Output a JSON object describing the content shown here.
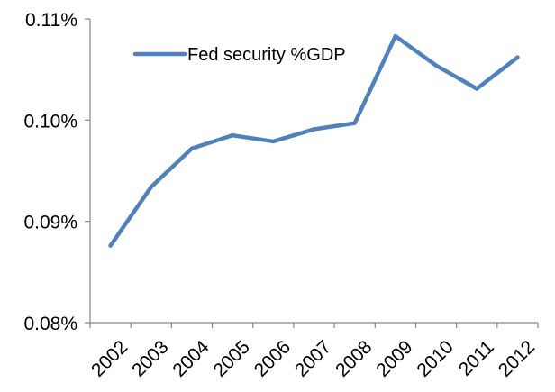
{
  "chart_data": {
    "type": "line",
    "categories": [
      "2002",
      "2003",
      "2004",
      "2005",
      "2006",
      "2007",
      "2008",
      "2009",
      "2010",
      "2011",
      "2012"
    ],
    "series": [
      {
        "name": "Fed security %GDP",
        "values": [
          0.0876,
          0.0934,
          0.0972,
          0.0985,
          0.0979,
          0.0991,
          0.0997,
          0.1083,
          0.1054,
          0.1031,
          0.1062
        ],
        "color": "#4F81BD"
      }
    ],
    "y_ticks": [
      "0.11%",
      "0.10%",
      "0.09%",
      "0.08%"
    ],
    "y_tick_values": [
      0.11,
      0.1,
      0.09,
      0.08
    ],
    "ylim": [
      0.08,
      0.11
    ],
    "grid": false,
    "legend_position": "top-left inside",
    "title": "",
    "xlabel": "",
    "ylabel": ""
  }
}
